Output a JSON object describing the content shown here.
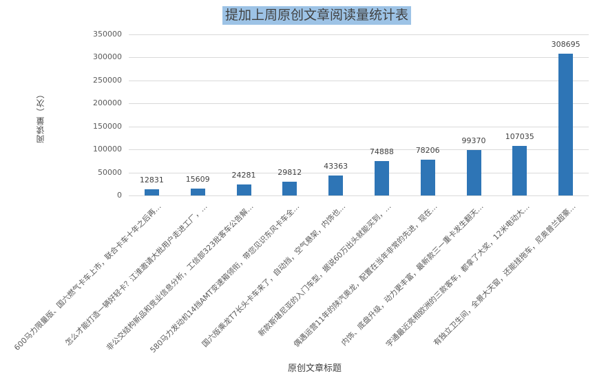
{
  "chart_data": {
    "type": "bar",
    "title": "提加上周原创文章阅读量统计表",
    "xlabel": "原创文章标题",
    "ylabel": "阅读量（次）",
    "ylim": [
      0,
      350000
    ],
    "yticks": [
      0,
      50000,
      100000,
      150000,
      200000,
      250000,
      300000,
      350000
    ],
    "grid": true,
    "legend": "none",
    "bar_color": "#2e75b6",
    "categories": [
      "600马力限量版、国六燃气卡车上市，联合卡车十年之后再…",
      "怎么才能打造一辆好轻卡？江淮邀请大批用户走进工厂，…",
      "非公交结构新品和竞业信息分析，工信部323批客车公告解…",
      "580马力发动机14挡AMT变速箱领衔，带您见识东风卡车全…",
      "国六版乘龙T7长头卡车来了，自动挡，空气悬架，内饰也…",
      "新款斯堪尼亚的入门车型，据说60万出头就能买到，…",
      "偶遇运营11年的陕汽奥龙，配置在当年非常的先进，现在…",
      "内饰、底盘升级，动力更丰富，最新款三一重卡发生翻天…",
      "宇通最近亮相欧洲的三款客车，都拿了大奖，12米电动大…",
      "有独立卫生间，全景大天窗，还能挂拖车，尼奥普兰超豪…"
    ],
    "values": [
      12831,
      15609,
      24281,
      29812,
      43363,
      74888,
      78206,
      99370,
      107035,
      308695
    ],
    "value_labels": [
      "12831",
      "15609",
      "24281",
      "29812",
      "43363",
      "74888",
      "78206",
      "99370",
      "107035",
      "308695"
    ],
    "ytick_labels": [
      "0",
      "50000",
      "100000",
      "150000",
      "200000",
      "250000",
      "300000",
      "350000"
    ]
  }
}
